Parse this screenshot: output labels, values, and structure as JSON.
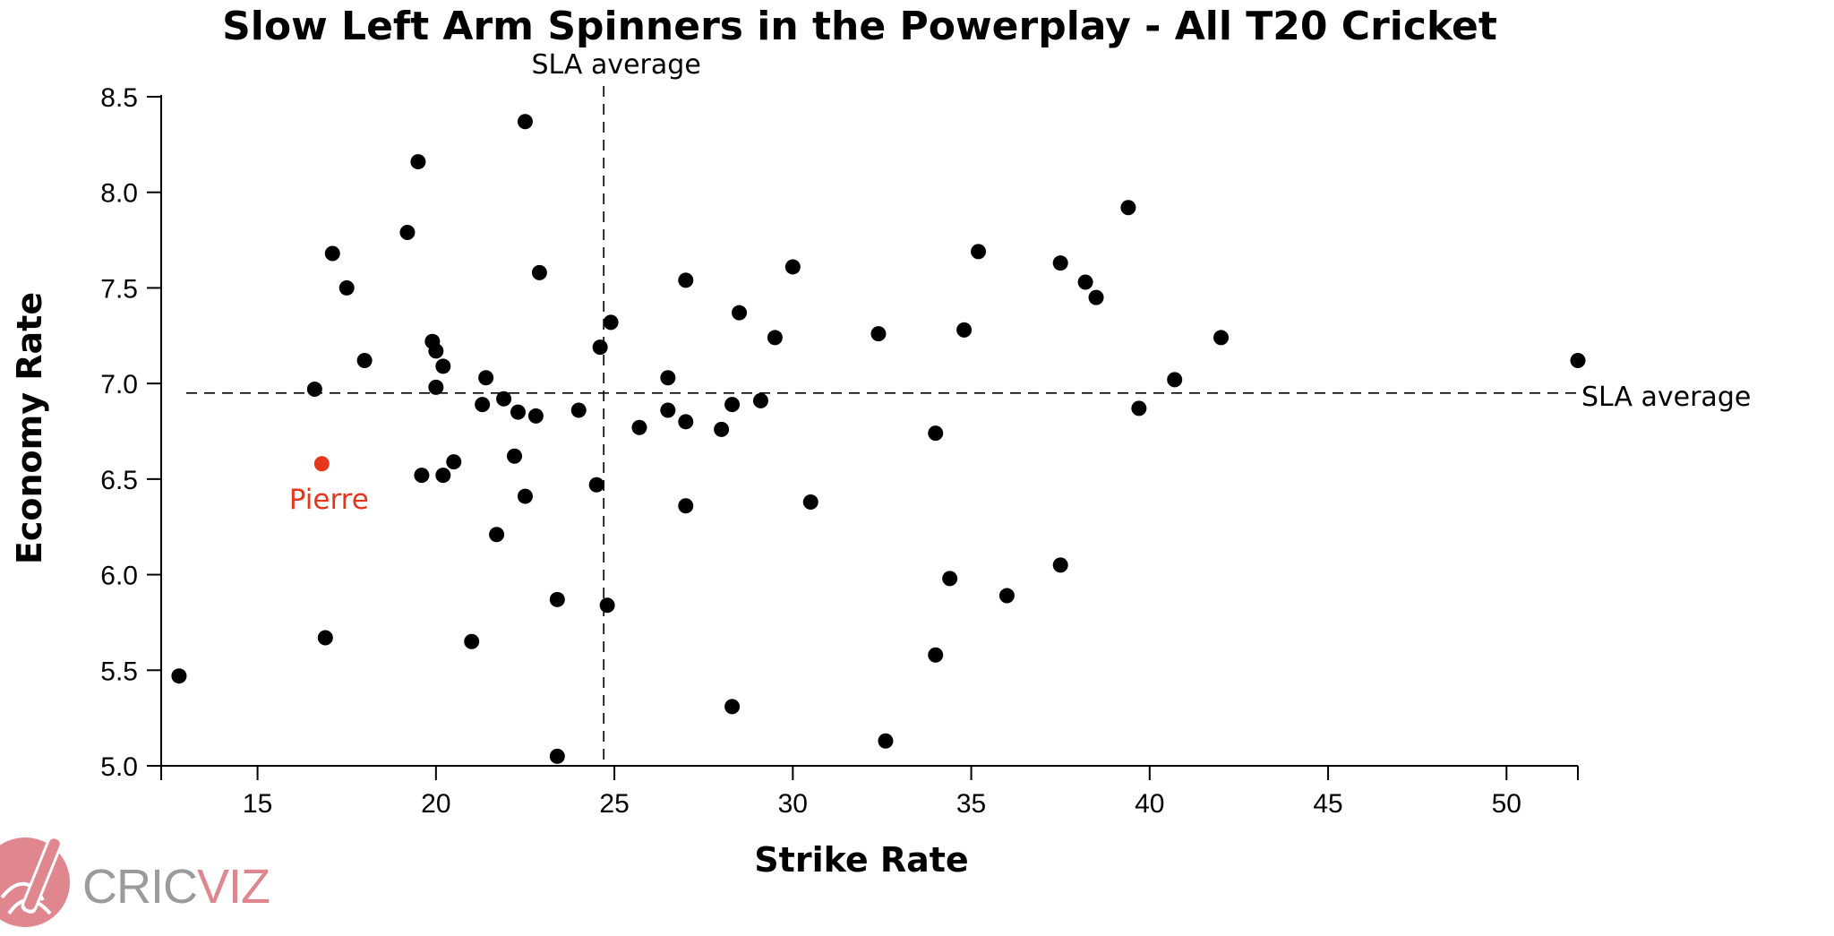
{
  "chart_data": {
    "type": "scatter",
    "title": "Slow Left Arm Spinners in the Powerplay - All T20 Cricket",
    "xlabel": "Strike Rate",
    "ylabel": "Economy Rate",
    "xlim": [
      12.3,
      52
    ],
    "ylim": [
      5.0,
      8.5
    ],
    "xticks": [
      "15",
      "20",
      "25",
      "30",
      "35",
      "40",
      "45",
      "50"
    ],
    "yticks": [
      "5.0",
      "5.5",
      "6.0",
      "6.5",
      "7.0",
      "7.5",
      "8.0",
      "8.5"
    ],
    "grid": false,
    "reference_lines": [
      {
        "axis": "x",
        "value": 24.7,
        "label": "SLA average"
      },
      {
        "axis": "y",
        "value": 6.95,
        "label": "SLA average"
      }
    ],
    "highlight": {
      "label": "Pierre",
      "x": 16.8,
      "y": 6.58,
      "color": "#e8361c"
    },
    "point_color": "#000000",
    "points": [
      [
        12.8,
        5.47
      ],
      [
        16.6,
        6.97
      ],
      [
        16.9,
        5.67
      ],
      [
        17.1,
        7.68
      ],
      [
        17.5,
        7.5
      ],
      [
        18.0,
        7.12
      ],
      [
        19.2,
        7.79
      ],
      [
        19.5,
        8.16
      ],
      [
        19.6,
        6.52
      ],
      [
        19.9,
        7.22
      ],
      [
        20.0,
        7.17
      ],
      [
        20.0,
        6.98
      ],
      [
        20.2,
        7.09
      ],
      [
        20.2,
        6.52
      ],
      [
        20.5,
        6.59
      ],
      [
        21.0,
        5.65
      ],
      [
        21.3,
        6.89
      ],
      [
        21.4,
        7.03
      ],
      [
        21.7,
        6.21
      ],
      [
        21.9,
        6.92
      ],
      [
        22.2,
        6.62
      ],
      [
        22.3,
        6.85
      ],
      [
        22.5,
        8.37
      ],
      [
        22.5,
        6.41
      ],
      [
        22.8,
        6.83
      ],
      [
        22.9,
        7.58
      ],
      [
        23.4,
        5.87
      ],
      [
        23.4,
        5.05
      ],
      [
        24.0,
        6.86
      ],
      [
        24.5,
        6.47
      ],
      [
        24.6,
        7.19
      ],
      [
        24.8,
        5.84
      ],
      [
        24.9,
        7.32
      ],
      [
        25.7,
        6.77
      ],
      [
        26.5,
        7.03
      ],
      [
        26.5,
        6.86
      ],
      [
        27.0,
        7.54
      ],
      [
        27.0,
        6.8
      ],
      [
        27.0,
        6.36
      ],
      [
        28.0,
        6.76
      ],
      [
        28.3,
        6.89
      ],
      [
        28.3,
        5.31
      ],
      [
        28.5,
        7.37
      ],
      [
        29.1,
        6.91
      ],
      [
        29.5,
        7.24
      ],
      [
        30.0,
        7.61
      ],
      [
        30.5,
        6.38
      ],
      [
        32.4,
        7.26
      ],
      [
        32.6,
        5.13
      ],
      [
        34.0,
        6.74
      ],
      [
        34.0,
        5.58
      ],
      [
        34.4,
        5.98
      ],
      [
        34.8,
        7.28
      ],
      [
        35.2,
        7.69
      ],
      [
        36.0,
        5.89
      ],
      [
        37.5,
        7.63
      ],
      [
        37.5,
        6.05
      ],
      [
        38.2,
        7.53
      ],
      [
        38.5,
        7.45
      ],
      [
        39.4,
        7.92
      ],
      [
        39.7,
        6.87
      ],
      [
        40.7,
        7.02
      ],
      [
        42.0,
        7.24
      ],
      [
        52.0,
        7.12
      ]
    ]
  },
  "logo": {
    "part1": "CRIC",
    "part2": "VIZ",
    "color1": "#9b9b9b",
    "color2": "#e0868f"
  }
}
